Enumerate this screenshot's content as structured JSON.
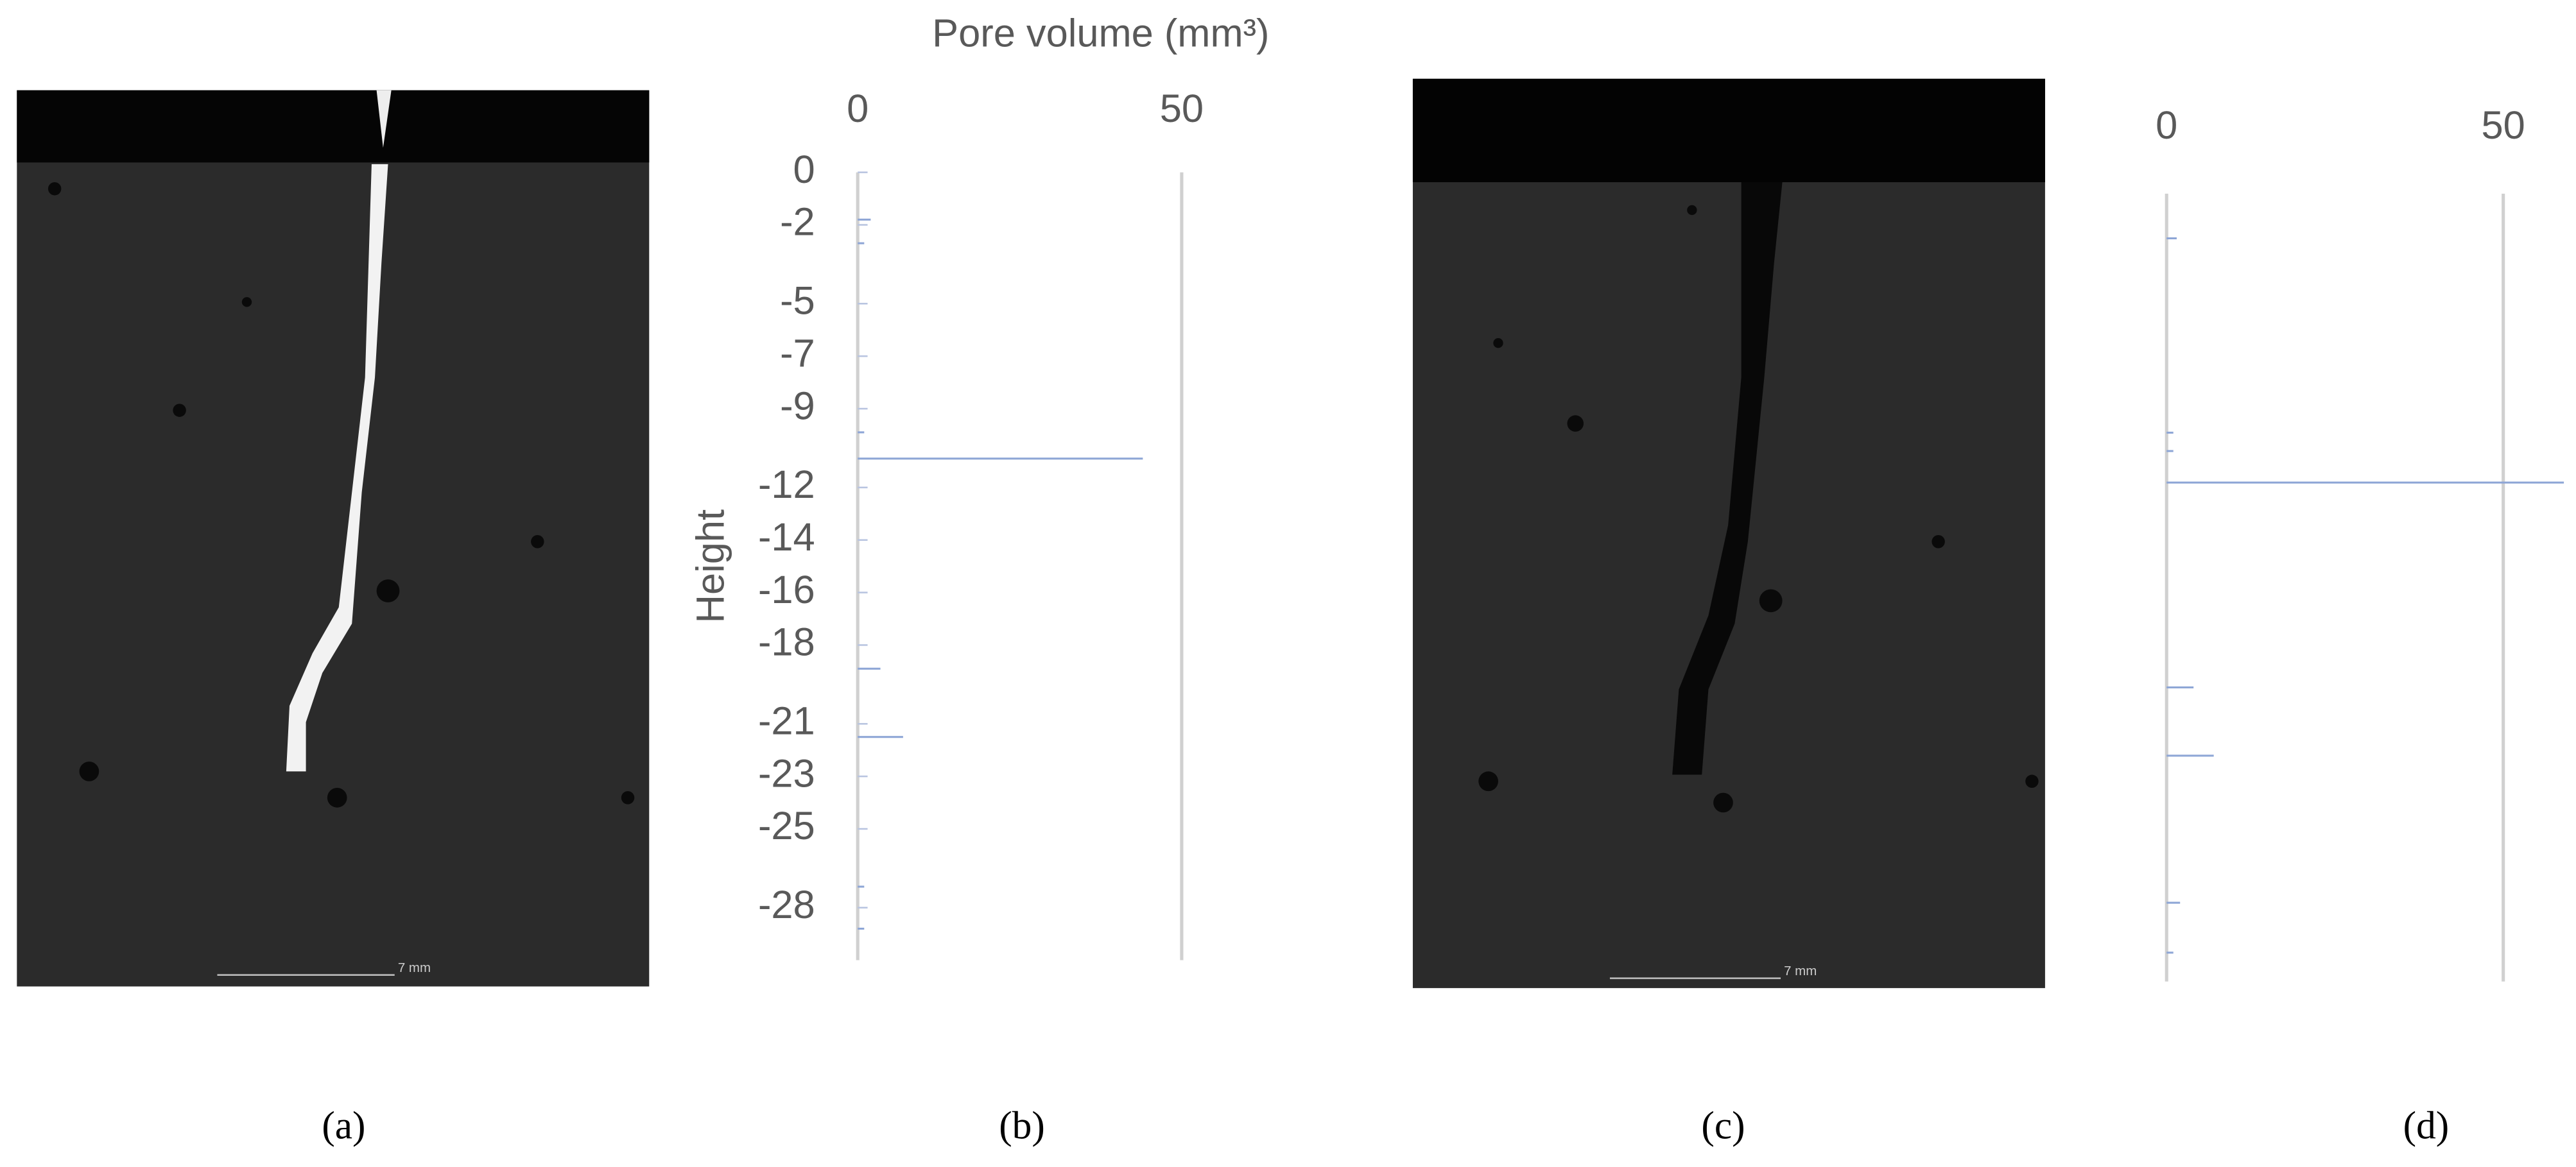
{
  "panels": [
    {
      "label": "(a)",
      "scale_bar": "7 mm"
    },
    {
      "label": "(b)"
    },
    {
      "label": "(c)",
      "scale_bar": "7 mm"
    },
    {
      "label": "(d)"
    }
  ],
  "chart_data": [
    {
      "type": "hbar",
      "x_label": "Pore volume (mm³)",
      "y_label": "Height",
      "color": "#8ea6d6",
      "heights": [
        -1.8,
        -2.7,
        -9.9,
        -10.9,
        -18.9,
        -21.5,
        -27.2,
        -28.8
      ],
      "values": [
        2,
        1,
        1,
        44,
        3.5,
        7,
        1,
        1
      ],
      "xlim": [
        0,
        55
      ],
      "xticks": [
        0,
        50
      ],
      "ylim": [
        -30,
        0
      ],
      "yticks": [
        0,
        -2,
        -5,
        -7,
        -9,
        -12,
        -14,
        -16,
        -18,
        -21,
        -23,
        -25,
        -28
      ],
      "grid": true
    },
    {
      "type": "hbar",
      "color": "#8ea6d6",
      "heights": [
        -1.7,
        -9.1,
        -9.8,
        -11,
        -18.8,
        -21.4,
        -27,
        -28.9
      ],
      "values": [
        1.5,
        1,
        1,
        59,
        4,
        7,
        2,
        1
      ],
      "xlim": [
        0,
        60
      ],
      "xticks": [
        0,
        50
      ],
      "ylim": [
        -30,
        0
      ],
      "grid": true
    }
  ]
}
